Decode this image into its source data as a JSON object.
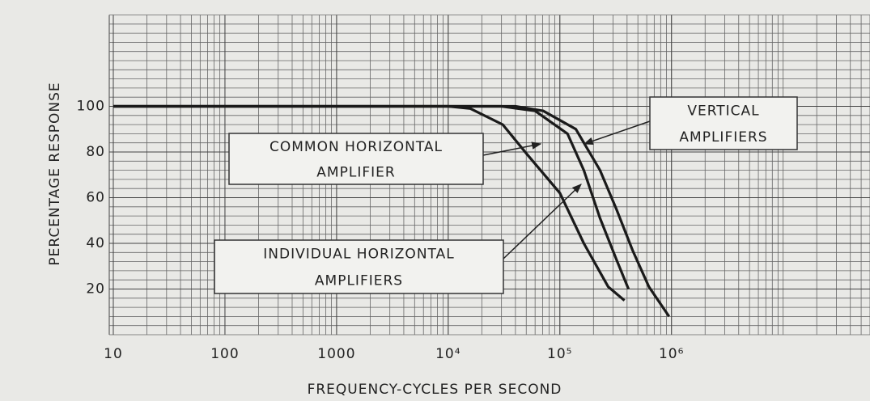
{
  "chart_data": {
    "type": "line",
    "xlabel": "FREQUENCY-CYCLES PER SECOND",
    "ylabel": "PERCENTAGE RESPONSE",
    "xscale": "log",
    "xlim": [
      10,
      60000000
    ],
    "ylim": [
      0,
      140
    ],
    "xticks": [
      10,
      100,
      1000,
      {
        "value": 10000,
        "label": "10⁴"
      },
      {
        "value": 100000,
        "label": "10⁵"
      },
      {
        "value": 1000000,
        "label": "10⁶"
      }
    ],
    "yticks": [
      20,
      40,
      60,
      80,
      100
    ],
    "grid": {
      "y_minor_step": 4,
      "x_log_minor": true
    },
    "color": "#1a1a1a",
    "series": [
      {
        "x": [
          10,
          10000,
          15800,
          30800,
          50800,
          100000,
          164000,
          271000,
          379000
        ],
        "values": [
          100,
          100,
          99,
          92,
          79,
          62,
          40,
          21,
          15
        ]
      },
      {
        "x": [
          10,
          30000,
          60000,
          117000,
          164000,
          229000,
          321000,
          412000
        ],
        "values": [
          100,
          100,
          98,
          88,
          72,
          51,
          33,
          20
        ]
      },
      {
        "x": [
          10,
          40000,
          71100,
          139000,
          229000,
          321000,
          448000,
          627000,
          951000
        ],
        "values": [
          100,
          100,
          98,
          90,
          72,
          55,
          37,
          21,
          8
        ]
      }
    ],
    "annotations": [
      {
        "lines": [
          "COMMON HORIZONTAL",
          "AMPLIFIER"
        ]
      },
      {
        "lines": [
          "VERTICAL",
          "AMPLIFIERS"
        ]
      },
      {
        "lines": [
          "INDIVIDUAL HORIZONTAL",
          "AMPLIFIERS"
        ]
      }
    ]
  }
}
